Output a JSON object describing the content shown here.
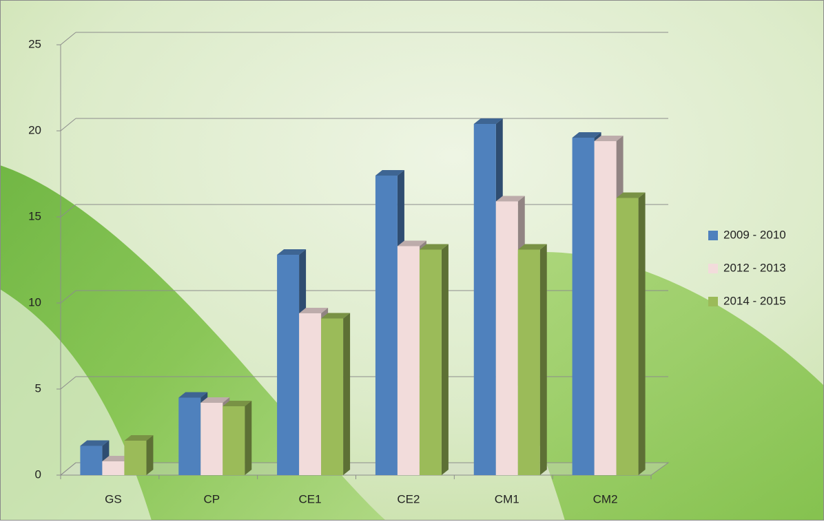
{
  "chart_data": {
    "type": "bar3d",
    "categories": [
      "GS",
      "CP",
      "CE1",
      "CE2",
      "CM1",
      "CM2"
    ],
    "series": [
      {
        "name": "2009 - 2010",
        "color": "#4f81bd",
        "values": [
          1.7,
          4.5,
          12.8,
          17.4,
          20.4,
          19.6
        ]
      },
      {
        "name": "2012 - 2013",
        "color": "#f2dcdb",
        "values": [
          0.8,
          4.2,
          9.4,
          13.3,
          15.9,
          19.4
        ]
      },
      {
        "name": "2014 - 2015",
        "color": "#9bbb59",
        "values": [
          2.0,
          4.0,
          9.1,
          13.1,
          13.1,
          16.1
        ]
      }
    ],
    "ylim": [
      0,
      25
    ],
    "yticks": [
      0,
      5,
      10,
      15,
      20,
      25
    ],
    "grid": true,
    "legend": "right"
  }
}
